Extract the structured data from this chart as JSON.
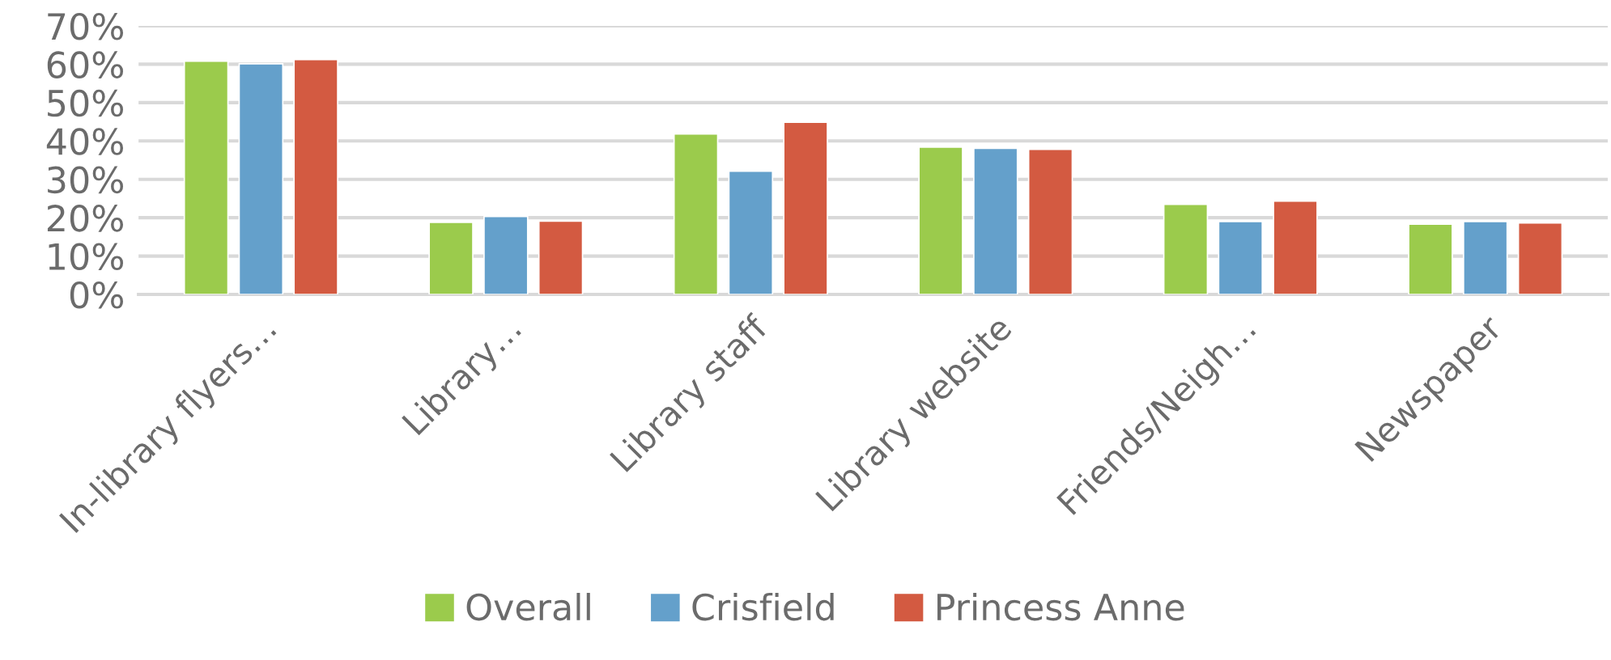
{
  "chart_data": {
    "type": "bar",
    "categories": [
      "In-library flyers…",
      "Library…",
      "Library staff",
      "Library website",
      "Friends/Neigh…",
      "Newspaper"
    ],
    "series": [
      {
        "name": "Overall",
        "color": "#9bcb4c",
        "values": [
          60.8,
          18.8,
          41.8,
          38.4,
          23.5,
          18.3
        ]
      },
      {
        "name": "Crisfield",
        "color": "#64a0cb",
        "values": [
          60.1,
          20.3,
          32.1,
          38.1,
          19.0,
          19.0
        ]
      },
      {
        "name": "Princess Anne",
        "color": "#d35a41",
        "values": [
          61.2,
          19.1,
          44.9,
          37.8,
          24.3,
          18.6
        ]
      }
    ],
    "ylim": [
      0,
      70
    ],
    "yticks": [
      {
        "value": 0,
        "label": "0%"
      },
      {
        "value": 10,
        "label": "10%"
      },
      {
        "value": 20,
        "label": "20%"
      },
      {
        "value": 30,
        "label": "30%"
      },
      {
        "value": 40,
        "label": "40%"
      },
      {
        "value": 50,
        "label": "50%"
      },
      {
        "value": 60,
        "label": "60%"
      },
      {
        "value": 70,
        "label": "70%"
      }
    ],
    "grid": "y",
    "legend": "bottom"
  }
}
